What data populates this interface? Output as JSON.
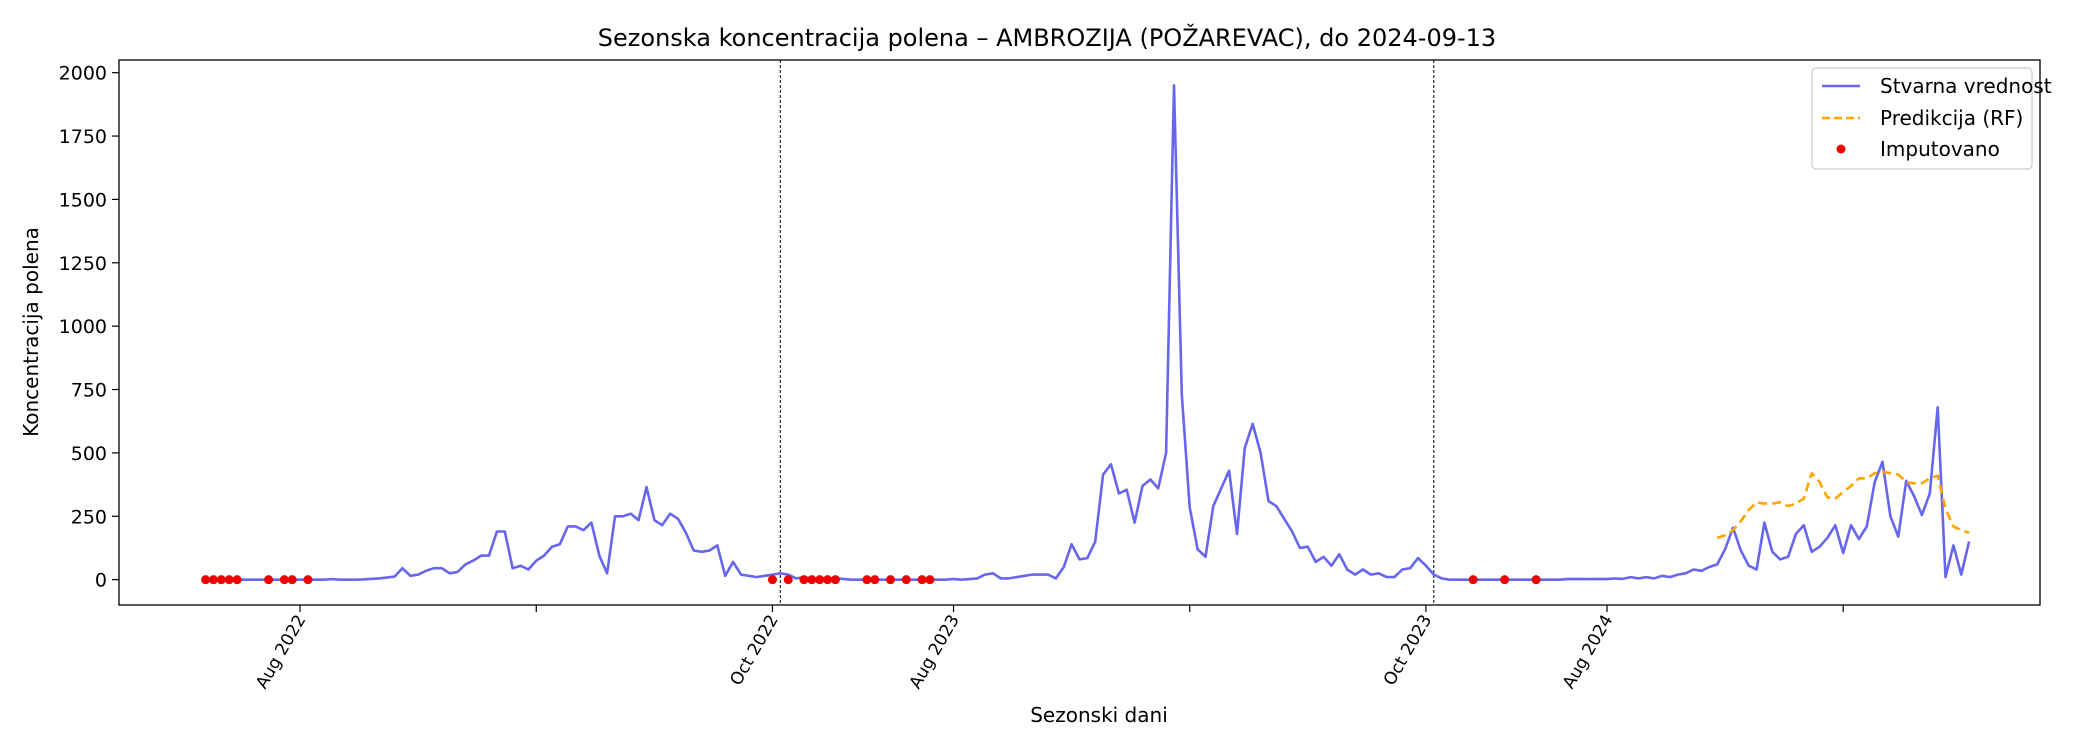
{
  "chart_data": {
    "type": "line",
    "title": "Sezonska koncentracija polena – AMBROZIJA (POŽAREVAC), do 2024-09-13",
    "xlabel": "Sezonski dani",
    "ylabel": "Koncentracija polena",
    "ylim": [
      -100,
      2050
    ],
    "xlim": [
      0,
      244
    ],
    "yticks": [
      0,
      250,
      500,
      750,
      1000,
      1250,
      1500,
      1750,
      2000
    ],
    "xticks": [
      {
        "x": 23,
        "label": "Aug 2022"
      },
      {
        "x": 53,
        "label": ""
      },
      {
        "x": 83,
        "label": "Oct 2022"
      },
      {
        "x": 106,
        "label": "Aug 2023"
      },
      {
        "x": 136,
        "label": ""
      },
      {
        "x": 166,
        "label": "Oct 2023"
      },
      {
        "x": 189,
        "label": "Aug 2024"
      },
      {
        "x": 219,
        "label": ""
      }
    ],
    "season_boundaries": [
      84,
      167
    ],
    "legend": {
      "position": "top-right"
    },
    "series": [
      {
        "name": "Stvarna vrednost",
        "color": "#6666ee",
        "style": "solid",
        "points": [
          [
            11,
            0
          ],
          [
            12,
            0
          ],
          [
            13,
            0
          ],
          [
            14,
            0
          ],
          [
            15,
            0
          ],
          [
            16,
            0
          ],
          [
            17,
            0
          ],
          [
            18,
            0
          ],
          [
            19,
            0
          ],
          [
            20,
            0
          ],
          [
            21,
            0
          ],
          [
            22,
            0
          ],
          [
            23,
            0
          ],
          [
            24,
            0
          ],
          [
            25,
            0
          ],
          [
            26,
            0
          ],
          [
            27,
            2
          ],
          [
            28,
            0
          ],
          [
            29,
            0
          ],
          [
            30,
            0
          ],
          [
            31,
            1
          ],
          [
            32,
            3
          ],
          [
            33,
            5
          ],
          [
            34,
            8
          ],
          [
            35,
            12
          ],
          [
            36,
            45
          ],
          [
            37,
            15
          ],
          [
            38,
            20
          ],
          [
            39,
            35
          ],
          [
            40,
            45
          ],
          [
            41,
            45
          ],
          [
            42,
            25
          ],
          [
            43,
            30
          ],
          [
            44,
            60
          ],
          [
            45,
            75
          ],
          [
            46,
            95
          ],
          [
            47,
            95
          ],
          [
            48,
            190
          ],
          [
            49,
            190
          ],
          [
            50,
            45
          ],
          [
            51,
            55
          ],
          [
            52,
            40
          ],
          [
            53,
            75
          ],
          [
            54,
            95
          ],
          [
            55,
            130
          ],
          [
            56,
            140
          ],
          [
            57,
            210
          ],
          [
            58,
            210
          ],
          [
            59,
            195
          ],
          [
            60,
            225
          ],
          [
            61,
            95
          ],
          [
            62,
            25
          ],
          [
            63,
            250
          ],
          [
            64,
            250
          ],
          [
            65,
            260
          ],
          [
            66,
            235
          ],
          [
            67,
            365
          ],
          [
            68,
            235
          ],
          [
            69,
            215
          ],
          [
            70,
            260
          ],
          [
            71,
            240
          ],
          [
            72,
            185
          ],
          [
            73,
            115
          ],
          [
            74,
            110
          ],
          [
            75,
            115
          ],
          [
            76,
            135
          ],
          [
            77,
            15
          ],
          [
            78,
            70
          ],
          [
            79,
            20
          ],
          [
            80,
            15
          ],
          [
            81,
            10
          ],
          [
            82,
            15
          ],
          [
            83,
            20
          ],
          [
            84,
            25
          ],
          [
            85,
            20
          ],
          [
            86,
            5
          ],
          [
            87,
            10
          ],
          [
            88,
            5
          ],
          [
            89,
            5
          ],
          [
            90,
            5
          ],
          [
            91,
            5
          ],
          [
            92,
            3
          ],
          [
            93,
            0
          ],
          [
            94,
            0
          ],
          [
            95,
            0
          ],
          [
            96,
            0
          ],
          [
            97,
            0
          ],
          [
            98,
            0
          ],
          [
            99,
            0
          ],
          [
            100,
            0
          ],
          [
            101,
            0
          ],
          [
            102,
            0
          ],
          [
            103,
            0
          ],
          [
            104,
            0
          ],
          [
            105,
            0
          ],
          [
            106,
            3
          ],
          [
            107,
            0
          ],
          [
            108,
            2
          ],
          [
            109,
            5
          ],
          [
            110,
            20
          ],
          [
            111,
            25
          ],
          [
            112,
            5
          ],
          [
            113,
            5
          ],
          [
            114,
            10
          ],
          [
            115,
            15
          ],
          [
            116,
            20
          ],
          [
            117,
            20
          ],
          [
            118,
            20
          ],
          [
            119,
            5
          ],
          [
            120,
            50
          ],
          [
            121,
            140
          ],
          [
            122,
            80
          ],
          [
            123,
            85
          ],
          [
            124,
            150
          ],
          [
            125,
            415
          ],
          [
            126,
            455
          ],
          [
            127,
            340
          ],
          [
            128,
            355
          ],
          [
            129,
            225
          ],
          [
            130,
            370
          ],
          [
            131,
            395
          ],
          [
            132,
            360
          ],
          [
            133,
            500
          ],
          [
            134,
            1950
          ],
          [
            135,
            730
          ],
          [
            136,
            285
          ],
          [
            137,
            120
          ],
          [
            138,
            90
          ],
          [
            139,
            290
          ],
          [
            140,
            360
          ],
          [
            141,
            430
          ],
          [
            142,
            180
          ],
          [
            143,
            520
          ],
          [
            144,
            615
          ],
          [
            145,
            500
          ],
          [
            146,
            310
          ],
          [
            147,
            290
          ],
          [
            148,
            240
          ],
          [
            149,
            190
          ],
          [
            150,
            125
          ],
          [
            151,
            130
          ],
          [
            152,
            70
          ],
          [
            153,
            90
          ],
          [
            154,
            55
          ],
          [
            155,
            100
          ],
          [
            156,
            40
          ],
          [
            157,
            20
          ],
          [
            158,
            40
          ],
          [
            159,
            20
          ],
          [
            160,
            25
          ],
          [
            161,
            10
          ],
          [
            162,
            10
          ],
          [
            163,
            40
          ],
          [
            164,
            45
          ],
          [
            165,
            85
          ],
          [
            166,
            55
          ],
          [
            167,
            20
          ],
          [
            168,
            5
          ],
          [
            169,
            0
          ],
          [
            170,
            0
          ],
          [
            171,
            0
          ],
          [
            172,
            0
          ],
          [
            173,
            0
          ],
          [
            174,
            0
          ],
          [
            175,
            0
          ],
          [
            176,
            0
          ],
          [
            177,
            0
          ],
          [
            178,
            0
          ],
          [
            179,
            0
          ],
          [
            180,
            0
          ],
          [
            181,
            0
          ],
          [
            182,
            0
          ],
          [
            183,
            0
          ],
          [
            184,
            2
          ],
          [
            185,
            3
          ],
          [
            186,
            2
          ],
          [
            187,
            2
          ],
          [
            188,
            3
          ],
          [
            189,
            2
          ],
          [
            190,
            5
          ],
          [
            191,
            3
          ],
          [
            192,
            10
          ],
          [
            193,
            5
          ],
          [
            194,
            10
          ],
          [
            195,
            5
          ],
          [
            196,
            15
          ],
          [
            197,
            10
          ],
          [
            198,
            20
          ],
          [
            199,
            25
          ],
          [
            200,
            40
          ],
          [
            201,
            35
          ],
          [
            202,
            50
          ],
          [
            203,
            60
          ],
          [
            204,
            120
          ],
          [
            205,
            205
          ],
          [
            206,
            115
          ],
          [
            207,
            55
          ],
          [
            208,
            40
          ],
          [
            209,
            225
          ],
          [
            210,
            110
          ],
          [
            211,
            80
          ],
          [
            212,
            90
          ],
          [
            213,
            180
          ],
          [
            214,
            215
          ],
          [
            215,
            110
          ],
          [
            216,
            130
          ],
          [
            217,
            165
          ],
          [
            218,
            215
          ],
          [
            219,
            105
          ],
          [
            220,
            215
          ],
          [
            221,
            160
          ],
          [
            222,
            210
          ],
          [
            223,
            385
          ],
          [
            224,
            465
          ],
          [
            225,
            250
          ],
          [
            226,
            170
          ],
          [
            227,
            390
          ],
          [
            228,
            330
          ],
          [
            229,
            255
          ],
          [
            230,
            340
          ],
          [
            231,
            680
          ],
          [
            232,
            10
          ],
          [
            233,
            135
          ],
          [
            234,
            20
          ],
          [
            235,
            150
          ]
        ]
      },
      {
        "name": "Predikcija (RF)",
        "color": "#ffa500",
        "style": "dashed",
        "points": [
          [
            203,
            165
          ],
          [
            204,
            175
          ],
          [
            205,
            195
          ],
          [
            206,
            230
          ],
          [
            207,
            275
          ],
          [
            208,
            305
          ],
          [
            209,
            300
          ],
          [
            210,
            300
          ],
          [
            211,
            305
          ],
          [
            212,
            290
          ],
          [
            213,
            300
          ],
          [
            214,
            320
          ],
          [
            215,
            420
          ],
          [
            216,
            385
          ],
          [
            217,
            325
          ],
          [
            218,
            320
          ],
          [
            219,
            345
          ],
          [
            220,
            370
          ],
          [
            221,
            400
          ],
          [
            222,
            400
          ],
          [
            223,
            420
          ],
          [
            224,
            425
          ],
          [
            225,
            420
          ],
          [
            226,
            415
          ],
          [
            227,
            385
          ],
          [
            228,
            380
          ],
          [
            229,
            380
          ],
          [
            230,
            400
          ],
          [
            231,
            410
          ],
          [
            232,
            280
          ],
          [
            233,
            210
          ],
          [
            234,
            195
          ],
          [
            235,
            185
          ]
        ]
      },
      {
        "name": "Imputovano",
        "color": "#ee0000",
        "style": "scatter",
        "points": [
          [
            11,
            0
          ],
          [
            12,
            0
          ],
          [
            13,
            0
          ],
          [
            14,
            0
          ],
          [
            15,
            0
          ],
          [
            19,
            0
          ],
          [
            21,
            0
          ],
          [
            22,
            0
          ],
          [
            24,
            0
          ],
          [
            83,
            0
          ],
          [
            85,
            0
          ],
          [
            87,
            0
          ],
          [
            88,
            0
          ],
          [
            89,
            0
          ],
          [
            90,
            0
          ],
          [
            91,
            0
          ],
          [
            95,
            0
          ],
          [
            96,
            0
          ],
          [
            98,
            0
          ],
          [
            100,
            0
          ],
          [
            102,
            0
          ],
          [
            103,
            0
          ],
          [
            172,
            0
          ],
          [
            176,
            0
          ],
          [
            180,
            0
          ]
        ]
      }
    ]
  }
}
